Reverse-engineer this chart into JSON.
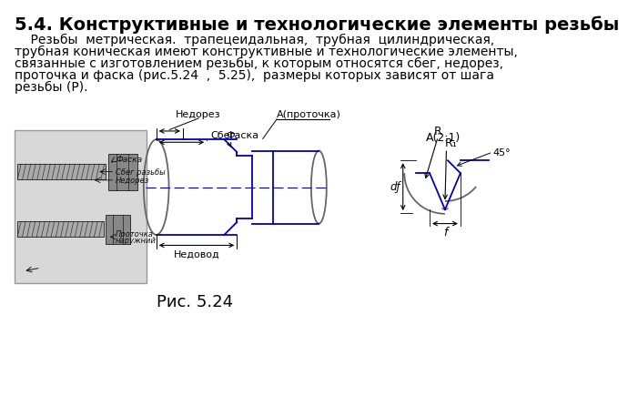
{
  "title": "5.4. Конструктивные и технологические элементы резьбы",
  "body_lines": [
    "    Резьбы  метрическая.  трапецеидальная,  трубная  цилиндрическая,",
    "трубная коническая имеют конструктивные и технологические элементы,",
    "связанные с изготовлением резьбы, к которым относятся сбег, недорез,",
    "проточка и фаска (рис.5.24  ,  5.25),  размеры которых зависят от шага",
    "резьбы (Р)."
  ],
  "caption": "Рис. 5.24",
  "bg_color": "#ffffff",
  "blue": "#0000bb",
  "gray": "#666666",
  "black": "#000000",
  "title_fontsize": 14,
  "body_fontsize": 10,
  "caption_fontsize": 13
}
